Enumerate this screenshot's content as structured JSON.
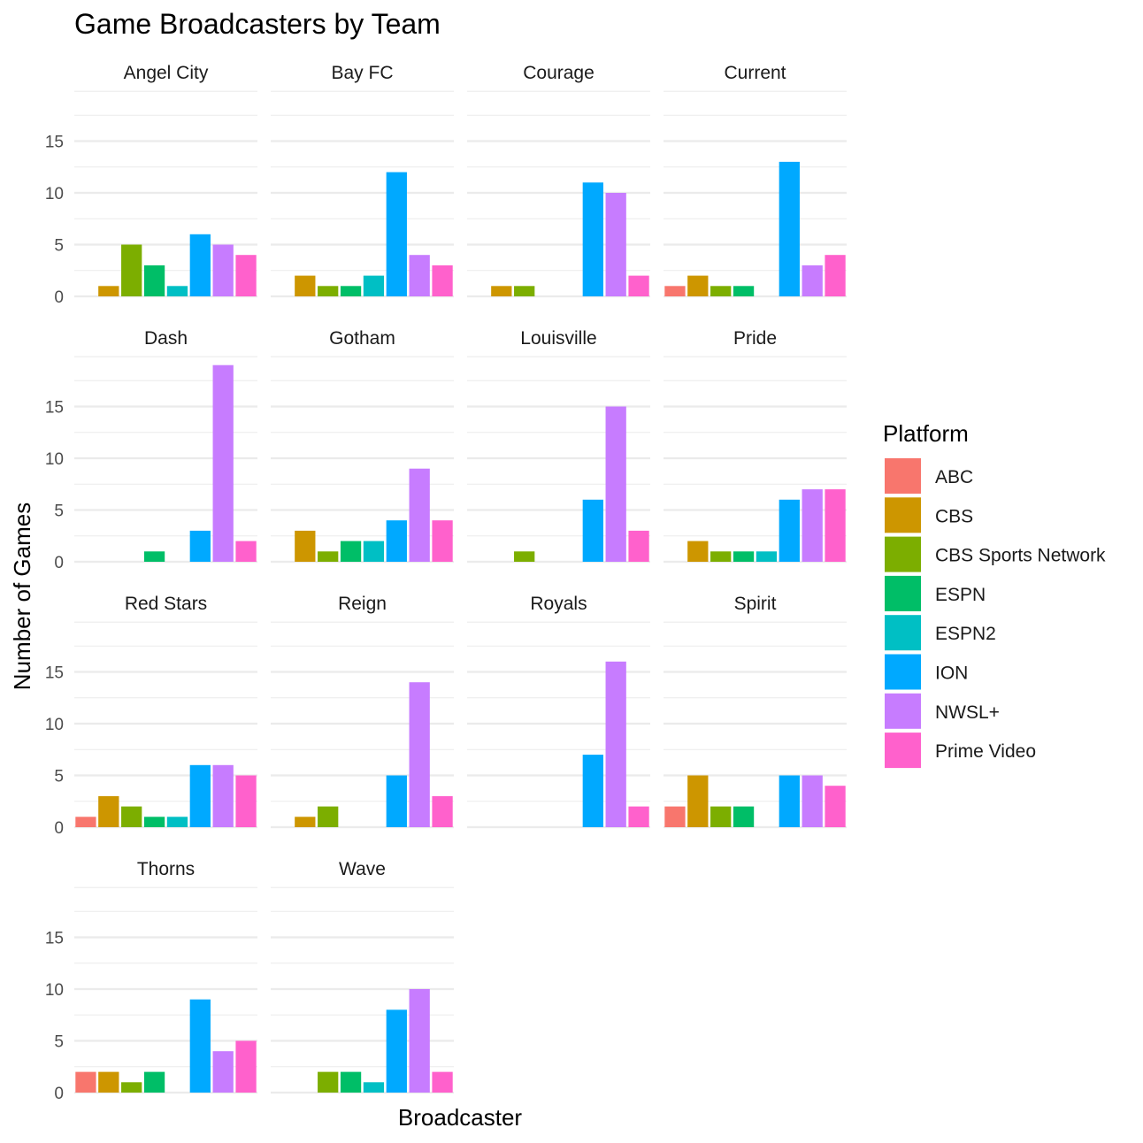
{
  "chart_data": {
    "type": "bar",
    "title": "Game Broadcasters by Team",
    "xlabel": "Broadcaster",
    "ylabel": "Number of Games",
    "ylim": [
      0,
      19
    ],
    "y_ticks": [
      "0",
      "5",
      "10",
      "15"
    ],
    "legend": {
      "title": "Platform",
      "placement": "right"
    },
    "platforms": [
      {
        "name": "ABC",
        "color": "#F8766D"
      },
      {
        "name": "CBS",
        "color": "#CD9600"
      },
      {
        "name": "CBS Sports Network",
        "color": "#7CAE00"
      },
      {
        "name": "ESPN",
        "color": "#00BE67"
      },
      {
        "name": "ESPN2",
        "color": "#00BFC4"
      },
      {
        "name": "ION",
        "color": "#00A9FF"
      },
      {
        "name": "NWSL+",
        "color": "#C77CFF"
      },
      {
        "name": "Prime Video",
        "color": "#FF61CC"
      }
    ],
    "facets": [
      {
        "team": "Angel City",
        "values": [
          0,
          1,
          5,
          3,
          1,
          6,
          5,
          4
        ]
      },
      {
        "team": "Bay FC",
        "values": [
          0,
          2,
          1,
          1,
          2,
          12,
          4,
          3
        ]
      },
      {
        "team": "Courage",
        "values": [
          0,
          1,
          1,
          0,
          0,
          11,
          10,
          2
        ]
      },
      {
        "team": "Current",
        "values": [
          1,
          2,
          1,
          1,
          0,
          13,
          3,
          4
        ]
      },
      {
        "team": "Dash",
        "values": [
          0,
          0,
          0,
          1,
          0,
          3,
          19,
          2
        ]
      },
      {
        "team": "Gotham",
        "values": [
          0,
          3,
          1,
          2,
          2,
          4,
          9,
          4
        ]
      },
      {
        "team": "Louisville",
        "values": [
          0,
          0,
          1,
          0,
          0,
          6,
          15,
          3
        ]
      },
      {
        "team": "Pride",
        "values": [
          0,
          2,
          1,
          1,
          1,
          6,
          7,
          7
        ]
      },
      {
        "team": "Red Stars",
        "values": [
          1,
          3,
          2,
          1,
          1,
          6,
          6,
          5
        ]
      },
      {
        "team": "Reign",
        "values": [
          0,
          1,
          2,
          0,
          0,
          5,
          14,
          3
        ]
      },
      {
        "team": "Royals",
        "values": [
          0,
          0,
          0,
          0,
          0,
          7,
          16,
          2
        ]
      },
      {
        "team": "Spirit",
        "values": [
          2,
          5,
          2,
          2,
          0,
          5,
          5,
          4
        ]
      },
      {
        "team": "Thorns",
        "values": [
          2,
          2,
          1,
          2,
          0,
          9,
          4,
          5
        ]
      },
      {
        "team": "Wave",
        "values": [
          0,
          0,
          2,
          2,
          1,
          8,
          10,
          2
        ]
      }
    ]
  }
}
